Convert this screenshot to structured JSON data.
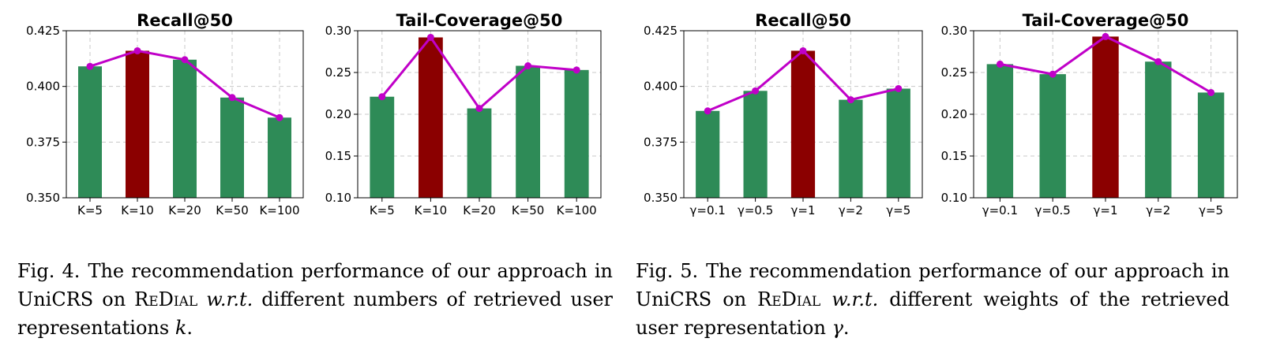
{
  "colors": {
    "bar": "#2e8b57",
    "highlight_bar": "#8b0000",
    "line": "#c000c8",
    "grid": "#c8c8c8"
  },
  "chart_data": [
    {
      "type": "bar",
      "title": "Recall@50",
      "categories": [
        "K=5",
        "K=10",
        "K=20",
        "K=50",
        "K=100"
      ],
      "values": [
        0.409,
        0.416,
        0.412,
        0.395,
        0.386
      ],
      "line_values": [
        0.409,
        0.416,
        0.412,
        0.395,
        0.386
      ],
      "highlight_index": 1,
      "ylim": [
        0.35,
        0.425
      ],
      "yticks": [
        "0.350",
        "0.375",
        "0.400",
        "0.425"
      ],
      "xlabel": "",
      "ylabel": "",
      "grid": true
    },
    {
      "type": "bar",
      "title": "Tail-Coverage@50",
      "categories": [
        "K=5",
        "K=10",
        "K=20",
        "K=50",
        "K=100"
      ],
      "values": [
        0.221,
        0.292,
        0.207,
        0.258,
        0.253
      ],
      "line_values": [
        0.221,
        0.292,
        0.207,
        0.258,
        0.253
      ],
      "highlight_index": 1,
      "ylim": [
        0.1,
        0.3
      ],
      "yticks": [
        "0.10",
        "0.15",
        "0.20",
        "0.25",
        "0.30"
      ],
      "xlabel": "",
      "ylabel": "",
      "grid": true
    },
    {
      "type": "bar",
      "title": "Recall@50",
      "categories": [
        "γ=0.1",
        "γ=0.5",
        "γ=1",
        "γ=2",
        "γ=5"
      ],
      "values": [
        0.389,
        0.398,
        0.416,
        0.394,
        0.399
      ],
      "line_values": [
        0.389,
        0.398,
        0.416,
        0.394,
        0.399
      ],
      "highlight_index": 2,
      "ylim": [
        0.35,
        0.425
      ],
      "yticks": [
        "0.350",
        "0.375",
        "0.400",
        "0.425"
      ],
      "xlabel": "",
      "ylabel": "",
      "grid": true
    },
    {
      "type": "bar",
      "title": "Tail-Coverage@50",
      "categories": [
        "γ=0.1",
        "γ=0.5",
        "γ=1",
        "γ=2",
        "γ=5"
      ],
      "values": [
        0.26,
        0.248,
        0.293,
        0.263,
        0.226
      ],
      "line_values": [
        0.26,
        0.248,
        0.293,
        0.263,
        0.226
      ],
      "highlight_index": 2,
      "ylim": [
        0.1,
        0.3
      ],
      "yticks": [
        "0.10",
        "0.15",
        "0.20",
        "0.25",
        "0.30"
      ],
      "xlabel": "",
      "ylabel": "",
      "grid": true
    }
  ],
  "captions": {
    "fig4": {
      "label": "Fig. 4.",
      "text_a": "The recommendation performance of our approach in UniCRS on ",
      "dataset": "ReDial",
      "wrt": "w.r.t.",
      "text_b": " different numbers of retrieved user representations ",
      "symbol": "k",
      "end": "."
    },
    "fig5": {
      "label": "Fig. 5.",
      "text_a": "The recommendation performance of our approach in UniCRS on ",
      "dataset": "ReDial",
      "wrt": "w.r.t.",
      "text_b": " different weights of the retrieved user representation ",
      "symbol": "γ",
      "end": "."
    }
  }
}
